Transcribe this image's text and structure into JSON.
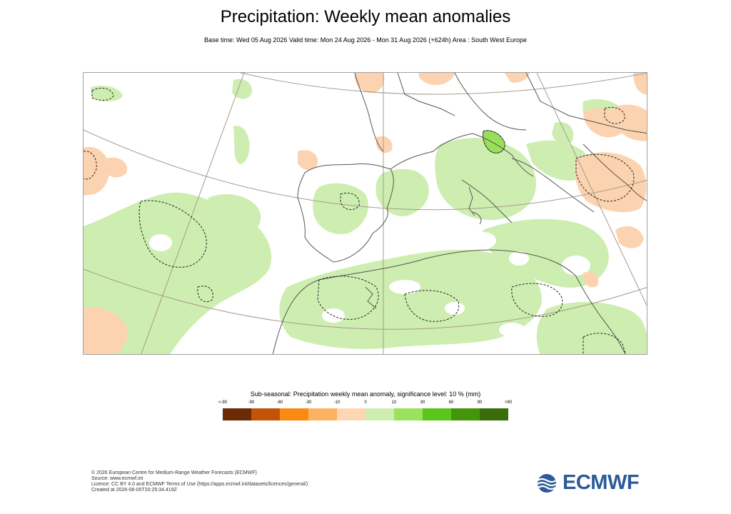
{
  "header": {
    "title": "Precipitation: Weekly mean anomalies",
    "subtitle": "Base time: Wed 05 Aug 2026 Valid time: Mon 24 Aug 2026 - Mon 31 Aug 2026 (+624h) Area : South West Europe"
  },
  "map": {
    "area": "South West Europe",
    "dominant_anomaly": "positive precipitation anomaly (light green) over the Mediterranean, Iberia, Italy and North Africa; negative anomaly (orange) over the Balkans/Greece and parts of the Atlantic",
    "colors": {
      "land_border": "#555555",
      "graticule": "#a89a8a",
      "positive_light": "#cdeeb0",
      "positive_strong": "#99e05a",
      "negative_light": "#fcd3b0"
    }
  },
  "legend": {
    "title": "Sub-seasonal: Precipitation weekly mean anomaly, significance level: 10 % (mm)",
    "ticks": [
      "<-90",
      "-90",
      "-60",
      "-30",
      "-10",
      "0",
      "10",
      "30",
      "60",
      "90",
      ">90"
    ],
    "colors": [
      "#6b2b06",
      "#c25408",
      "#fb8a12",
      "#fcb262",
      "#fdd7b4",
      "#cdeeb0",
      "#9be25e",
      "#5ac61c",
      "#43960a",
      "#3a6e0b"
    ]
  },
  "footer": {
    "lines": [
      "© 2026 European Centre for Medium-Range Weather Forecasts (ECMWF)",
      "Source: www.ecmwf.int",
      "Licence: CC BY 4.0 and ECMWF Terms of Use (https://apps.ecmwf.int/datasets/licences/general/)",
      "Created at 2026-08-05T20:25:34.419Z"
    ]
  },
  "logo": {
    "text": "ECMWF",
    "color": "#2c5a9a",
    "icon": "ecmwf-waves-icon"
  }
}
